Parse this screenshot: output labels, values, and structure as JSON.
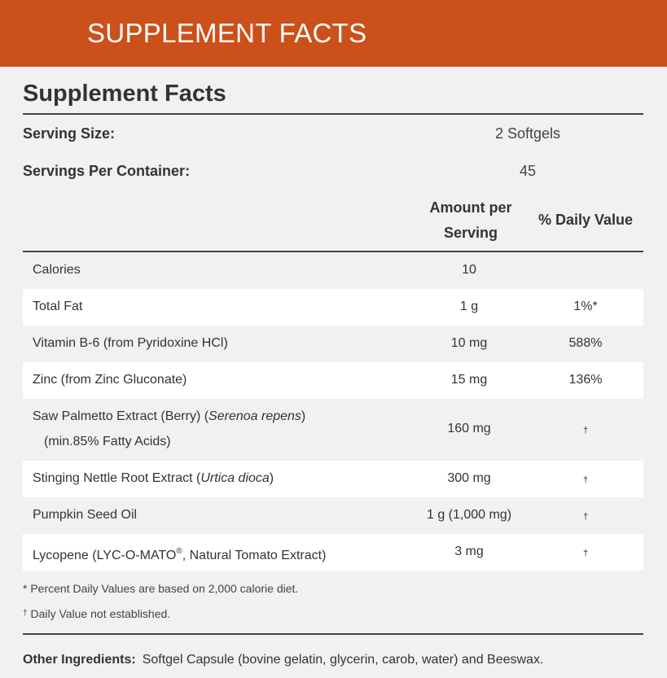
{
  "banner": {
    "title": "SUPPLEMENT FACTS"
  },
  "panel": {
    "title": "Supplement Facts",
    "serving_size": {
      "label": "Serving Size:",
      "value": "2 Softgels"
    },
    "servings_per_container": {
      "label": "Servings Per Container:",
      "value": "45"
    },
    "columns": {
      "amount_line1": "Amount per",
      "amount_line2": "Serving",
      "daily_value": "% Daily Value"
    },
    "rows": [
      {
        "name": "Calories",
        "amount": "10",
        "dv": ""
      },
      {
        "name": "Total Fat",
        "amount": "1 g",
        "dv": "1%*"
      },
      {
        "name": "Vitamin B-6 (from Pyridoxine HCl)",
        "amount": "10 mg",
        "dv": "588%"
      },
      {
        "name": "Zinc (from Zinc Gluconate)",
        "amount": "15 mg",
        "dv": "136%"
      },
      {
        "name_plain": "Saw Palmetto Extract (Berry) (",
        "name_italic": "Serenoa repens",
        "name_close": ")",
        "name_line2": "(min.85% Fatty Acids)",
        "amount": "160 mg",
        "dv": "†"
      },
      {
        "name_plain": "Stinging Nettle Root Extract (",
        "name_italic": "Urtica dioca",
        "name_close": ")",
        "amount": "300 mg",
        "dv": "†"
      },
      {
        "name": "Pumpkin Seed Oil",
        "amount": "1 g (1,000 mg)",
        "dv": "†"
      },
      {
        "name_plain": "Lycopene (LYC-O-MATO",
        "name_sup": "®",
        "name_rest": ", Natural Tomato Extract)",
        "amount": "3 mg",
        "dv": "†"
      }
    ],
    "footnotes": {
      "percent_note": "* Percent Daily Values are based on 2,000 calorie diet.",
      "dagger_mark": "†",
      "dagger_note": " Daily Value not established."
    },
    "other_ingredients": {
      "label": "Other Ingredients:",
      "text": "Softgel Capsule (bovine gelatin, glycerin, carob, water) and Beeswax."
    }
  },
  "colors": {
    "banner": "#cc5019",
    "page_background": "#f1f1f1",
    "shaded_row": "#ffffff",
    "text": "#333333"
  }
}
